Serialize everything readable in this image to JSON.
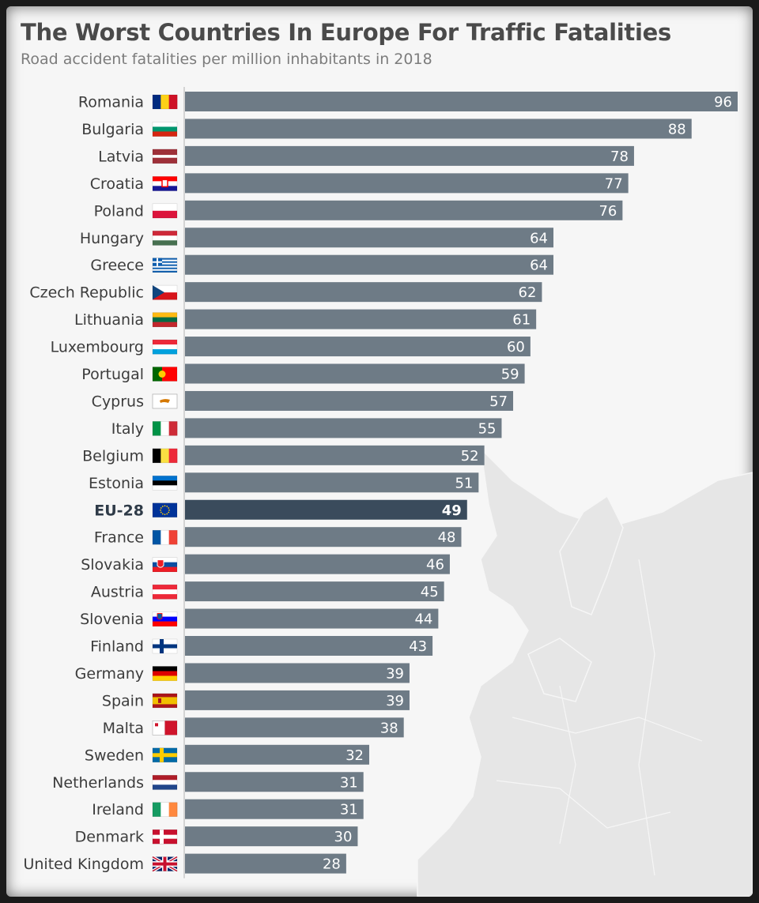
{
  "title": "The Worst Countries In Europe For Traffic Fatalities",
  "subtitle": "Road accident fatalities per million inhabitants in 2018",
  "colors": {
    "bar": "#6e7b86",
    "highlight_bar": "#3a4b5c",
    "axis": "#c8c8c8"
  },
  "chart_data": {
    "type": "bar",
    "orientation": "horizontal",
    "categories": [
      "Romania",
      "Bulgaria",
      "Latvia",
      "Croatia",
      "Poland",
      "Hungary",
      "Greece",
      "Czech Republic",
      "Lithuania",
      "Luxembourg",
      "Portugal",
      "Cyprus",
      "Italy",
      "Belgium",
      "Estonia",
      "EU-28",
      "France",
      "Slovakia",
      "Austria",
      "Slovenia",
      "Finland",
      "Germany",
      "Spain",
      "Malta",
      "Sweden",
      "Netherlands",
      "Ireland",
      "Denmark",
      "United Kingdom"
    ],
    "values": [
      96,
      88,
      78,
      77,
      76,
      64,
      64,
      62,
      61,
      60,
      59,
      57,
      55,
      52,
      51,
      49,
      48,
      46,
      45,
      44,
      43,
      39,
      39,
      38,
      32,
      31,
      31,
      30,
      28
    ],
    "flags": [
      "ro",
      "bg",
      "lv",
      "hr",
      "pl",
      "hu",
      "gr",
      "cz",
      "lt",
      "lu",
      "pt",
      "cy",
      "it",
      "be",
      "ee",
      "eu",
      "fr",
      "sk",
      "at",
      "si",
      "fi",
      "de",
      "es",
      "mt",
      "se",
      "nl",
      "ie",
      "dk",
      "gb"
    ],
    "highlight": "EU-28",
    "xlim": [
      0,
      96
    ],
    "grid": false,
    "xlabel": "",
    "ylabel": ""
  }
}
